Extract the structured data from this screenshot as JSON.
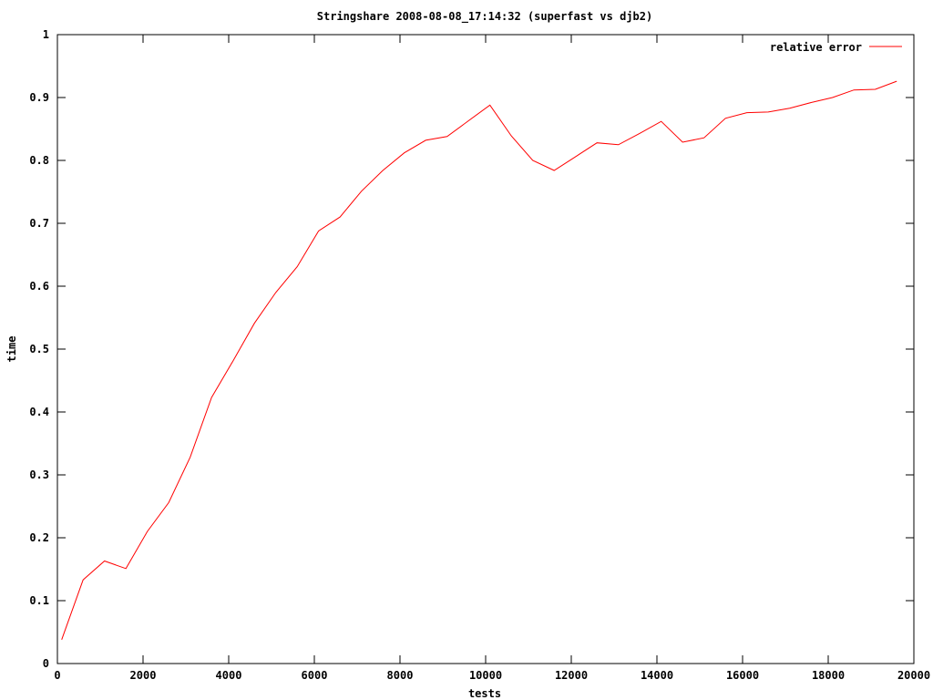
{
  "chart_data": {
    "type": "line",
    "title": "Stringshare 2008-08-08_17:14:32 (superfast vs djb2)",
    "xlabel": "tests",
    "ylabel": "time",
    "xlim": [
      0,
      20000
    ],
    "ylim": [
      0,
      1
    ],
    "x_ticks": [
      "0",
      "2000",
      "4000",
      "6000",
      "8000",
      "10000",
      "12000",
      "14000",
      "16000",
      "18000",
      "20000"
    ],
    "y_ticks": [
      "0",
      "0.1",
      "0.2",
      "0.3",
      "0.4",
      "0.5",
      "0.6",
      "0.7",
      "0.8",
      "0.9",
      "1"
    ],
    "grid": false,
    "legend_position": "top-right",
    "series": [
      {
        "name": "relative error",
        "color": "#ff0000",
        "x": [
          100,
          600,
          1100,
          1600,
          2100,
          2600,
          3100,
          3600,
          4100,
          4600,
          5100,
          5600,
          6100,
          6600,
          7100,
          7600,
          8100,
          8600,
          9100,
          9600,
          10100,
          10600,
          11100,
          11600,
          12100,
          12600,
          13100,
          13600,
          14100,
          14600,
          15100,
          15600,
          16100,
          16600,
          17100,
          17600,
          18100,
          18600,
          19100,
          19600
        ],
        "y": [
          0.038,
          0.133,
          0.163,
          0.151,
          0.21,
          0.256,
          0.328,
          0.423,
          0.481,
          0.541,
          0.59,
          0.631,
          0.688,
          0.71,
          0.751,
          0.784,
          0.812,
          0.832,
          0.838,
          0.863,
          0.888,
          0.839,
          0.8,
          0.784,
          0.806,
          0.828,
          0.825,
          0.843,
          0.862,
          0.829,
          0.836,
          0.867,
          0.876,
          0.877,
          0.883,
          0.892,
          0.9,
          0.912,
          0.913,
          0.926
        ]
      }
    ]
  }
}
